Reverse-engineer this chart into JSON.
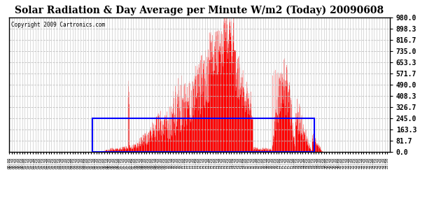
{
  "title": "Solar Radiation & Day Average per Minute W/m2 (Today) 20090608",
  "copyright": "Copyright 2009 Cartronics.com",
  "bg_color": "#ffffff",
  "plot_bg_color": "#ffffff",
  "bar_color": "#ff0000",
  "avg_box_color": "#0000ff",
  "grid_color": "#c0c0c0",
  "ymin": 0.0,
  "ymax": 980.0,
  "yticks": [
    0.0,
    81.7,
    163.3,
    245.0,
    326.7,
    408.3,
    490.0,
    571.7,
    653.3,
    735.0,
    816.7,
    898.3,
    980.0
  ],
  "avg_value": 245.0,
  "avg_start_minute": 315,
  "avg_end_minute": 1155,
  "total_minutes": 1440,
  "xlim_start": 0,
  "xlim_end": 1439
}
